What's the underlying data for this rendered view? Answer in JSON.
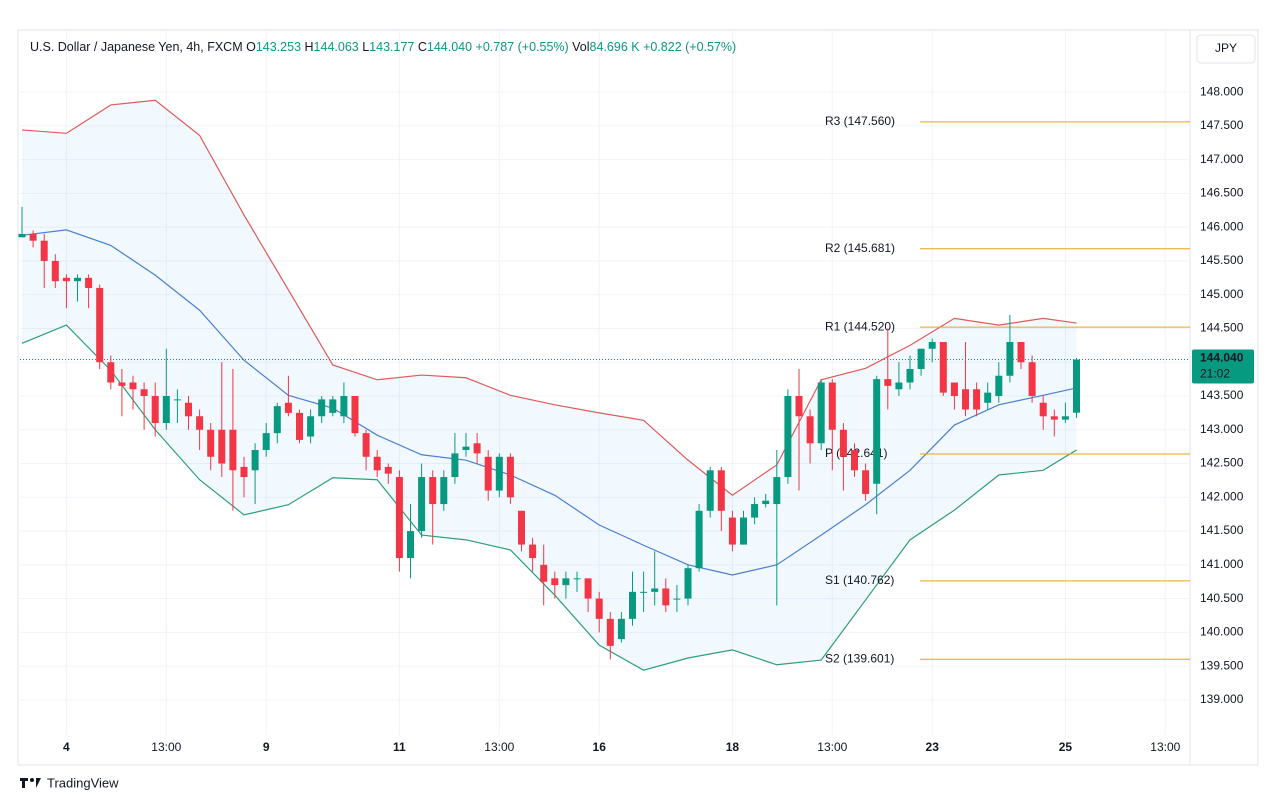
{
  "chart_data": {
    "type": "candlestick",
    "header": {
      "symbol": "U.S. Dollar / Japanese Yen, 4h, FXCM",
      "fields": [
        {
          "key": "O",
          "text": "143.253"
        },
        {
          "key": "H",
          "text": "144.063"
        },
        {
          "key": "L",
          "text": "143.177"
        },
        {
          "key": "C",
          "text": "144.040"
        }
      ],
      "change": "+0.787 (+0.55%)",
      "vol_key": "Vol",
      "vol": "84.696 K",
      "vol_change": "+0.822 (+0.57%)"
    },
    "currency": "JPY",
    "brand": "TradingView",
    "categories": [
      null,
      null,
      null,
      null,
      "4",
      null,
      null,
      null,
      null,
      null,
      null,
      null,
      null,
      "13:00",
      null,
      null,
      null,
      null,
      null,
      null,
      null,
      null,
      "9",
      null,
      null,
      null,
      null,
      null,
      null,
      null,
      null,
      null,
      null,
      null,
      "11",
      null,
      null,
      null,
      null,
      null,
      null,
      null,
      null,
      "13:00",
      null,
      null,
      null,
      null,
      null,
      null,
      null,
      null,
      "16",
      null,
      null,
      null,
      null,
      null,
      null,
      null,
      null,
      null,
      null,
      null,
      "18",
      null,
      null,
      null,
      null,
      null,
      null,
      null,
      null,
      "13:00",
      null,
      null,
      null,
      null,
      null,
      null,
      null,
      null,
      "23",
      null,
      null,
      null,
      null,
      null,
      null,
      null,
      null,
      null,
      null,
      null,
      "25",
      null,
      null,
      null,
      null,
      null,
      null,
      null,
      null,
      "13:00"
    ],
    "open": [
      145.85,
      145.9,
      145.8,
      145.5,
      145.25,
      145.2,
      145.25,
      145.1,
      144.0,
      143.7,
      143.7,
      143.6,
      143.5,
      143.1,
      143.45,
      143.4,
      143.2,
      143.0,
      143.0,
      143.0,
      142.45,
      142.4,
      142.7,
      142.95,
      143.4,
      143.25,
      142.9,
      143.2,
      143.25,
      143.2,
      143.5,
      142.95,
      142.6,
      142.45,
      142.3,
      141.1,
      141.5,
      142.3,
      141.9,
      142.3,
      142.7,
      142.8,
      142.6,
      142.1,
      142.6,
      141.8,
      141.3,
      141.0,
      140.8,
      140.7,
      140.8,
      140.8,
      140.5,
      140.2,
      139.9,
      140.2,
      140.6,
      140.6,
      140.65,
      140.5,
      140.5,
      140.95,
      141.8,
      142.4,
      141.7,
      141.3,
      141.7,
      141.9,
      141.9,
      142.3,
      143.5,
      143.2,
      142.8,
      143.7,
      143.0,
      142.7,
      142.4,
      142.2,
      143.75,
      143.6,
      143.7,
      143.9,
      144.2,
      144.3,
      143.7,
      143.6,
      143.6,
      143.4,
      143.5,
      143.8,
      144.3,
      144.0,
      143.4,
      143.2,
      143.15,
      143.253,
      null,
      null,
      null,
      null,
      null,
      null,
      null,
      null
    ],
    "high": [
      146.3,
      145.95,
      145.9,
      145.6,
      145.3,
      145.3,
      145.3,
      145.15,
      144.1,
      143.9,
      143.8,
      143.7,
      143.7,
      144.2,
      143.6,
      143.5,
      143.3,
      143.1,
      144.0,
      143.9,
      142.6,
      142.8,
      143.1,
      143.4,
      143.8,
      143.3,
      143.3,
      143.5,
      143.5,
      143.7,
      143.5,
      143.0,
      142.7,
      142.5,
      142.4,
      141.9,
      142.5,
      142.4,
      142.4,
      142.95,
      142.95,
      142.95,
      142.7,
      142.65,
      142.65,
      141.8,
      141.4,
      141.3,
      140.9,
      140.9,
      140.9,
      140.7,
      140.6,
      140.3,
      140.3,
      140.9,
      140.9,
      141.2,
      140.8,
      140.7,
      141.0,
      141.9,
      142.45,
      142.45,
      141.8,
      141.8,
      142.0,
      142.05,
      142.7,
      143.6,
      143.9,
      143.3,
      143.75,
      143.75,
      143.1,
      142.8,
      142.5,
      143.8,
      144.5,
      144.0,
      144.1,
      144.2,
      144.35,
      144.3,
      143.6,
      144.3,
      143.7,
      143.7,
      144.0,
      144.7,
      144.3,
      144.1,
      143.5,
      143.3,
      143.4,
      144.063,
      null,
      null,
      null,
      null,
      null,
      null,
      null,
      null
    ],
    "low": [
      145.85,
      145.7,
      145.1,
      145.1,
      144.8,
      144.9,
      144.8,
      143.9,
      143.6,
      143.2,
      143.3,
      143.0,
      142.9,
      143.0,
      143.1,
      143.0,
      142.7,
      142.4,
      142.3,
      141.8,
      142.0,
      141.9,
      142.6,
      142.8,
      143.2,
      142.8,
      142.8,
      143.1,
      143.2,
      143.1,
      142.9,
      142.4,
      142.3,
      142.2,
      140.9,
      140.8,
      141.4,
      141.3,
      141.8,
      142.2,
      142.6,
      142.5,
      141.95,
      142.0,
      141.9,
      141.2,
      140.9,
      140.4,
      140.5,
      140.5,
      140.6,
      140.3,
      140.0,
      139.6,
      139.85,
      140.1,
      140.3,
      140.4,
      140.3,
      140.3,
      140.4,
      140.9,
      141.7,
      141.5,
      141.2,
      141.3,
      141.6,
      141.85,
      140.4,
      142.2,
      142.1,
      142.5,
      142.7,
      142.4,
      142.1,
      142.3,
      141.95,
      141.75,
      143.3,
      143.5,
      143.6,
      143.8,
      144.0,
      143.5,
      143.3,
      143.2,
      143.2,
      143.3,
      143.4,
      143.7,
      143.9,
      143.4,
      143.0,
      142.9,
      143.1,
      143.177,
      null,
      null,
      null,
      null,
      null,
      null,
      null,
      null
    ],
    "close": [
      145.9,
      145.8,
      145.5,
      145.2,
      145.2,
      145.25,
      145.1,
      144.0,
      143.7,
      143.65,
      143.6,
      143.5,
      143.1,
      143.5,
      143.45,
      143.2,
      143.0,
      142.6,
      142.5,
      142.4,
      142.3,
      142.7,
      142.95,
      143.35,
      143.25,
      142.85,
      143.2,
      143.45,
      143.45,
      143.5,
      142.95,
      142.6,
      142.4,
      142.35,
      141.1,
      141.5,
      142.3,
      141.9,
      142.3,
      142.65,
      142.75,
      142.65,
      142.1,
      142.6,
      142.0,
      141.3,
      141.1,
      140.75,
      140.7,
      140.8,
      140.8,
      140.5,
      140.2,
      139.8,
      140.2,
      140.6,
      140.6,
      140.65,
      140.4,
      140.5,
      140.95,
      141.8,
      142.4,
      141.8,
      141.3,
      141.7,
      141.9,
      141.95,
      142.3,
      143.5,
      143.2,
      142.8,
      143.7,
      143.0,
      142.6,
      142.4,
      142.05,
      143.75,
      143.65,
      143.7,
      143.9,
      144.2,
      144.3,
      143.55,
      143.5,
      143.3,
      143.3,
      143.55,
      143.8,
      144.3,
      144.0,
      143.5,
      143.2,
      143.15,
      143.2,
      144.04,
      null,
      null,
      null,
      null,
      null,
      null,
      null,
      null
    ],
    "up_color": "#089981",
    "down_color": "#f23645",
    "bands": {
      "x": [
        0,
        4,
        8,
        12,
        16,
        20,
        24,
        28,
        32,
        36,
        40,
        44,
        48,
        52,
        56,
        60,
        64,
        68,
        72,
        76,
        80,
        84,
        88,
        92,
        95
      ],
      "upper": {
        "color": "#e05a5a",
        "values": [
          147.44,
          147.39,
          147.81,
          147.88,
          147.36,
          146.18,
          145.07,
          143.96,
          143.74,
          143.81,
          143.77,
          143.51,
          143.37,
          143.25,
          143.14,
          142.55,
          142.03,
          142.48,
          143.74,
          143.91,
          144.25,
          144.65,
          144.55,
          144.65,
          144.58
        ]
      },
      "middle": {
        "color": "#4a7fd0",
        "values": [
          145.88,
          145.96,
          145.73,
          145.29,
          144.77,
          144.03,
          143.51,
          143.32,
          142.92,
          142.63,
          142.55,
          142.33,
          142.03,
          141.59,
          141.29,
          141.0,
          140.85,
          141.0,
          141.44,
          141.89,
          142.4,
          143.07,
          143.37,
          143.51,
          143.62
        ]
      },
      "lower": {
        "color": "#2e9e7a",
        "values": [
          144.28,
          144.55,
          143.88,
          143.0,
          142.26,
          141.74,
          141.89,
          142.29,
          142.26,
          141.44,
          141.37,
          141.22,
          140.55,
          139.81,
          139.44,
          139.62,
          139.74,
          139.52,
          139.59,
          140.48,
          141.37,
          141.81,
          142.33,
          142.4,
          142.7
        ]
      }
    },
    "pivots": [
      {
        "label": "R3 (147.560)",
        "value": 147.56
      },
      {
        "label": "R2 (145.681)",
        "value": 145.681
      },
      {
        "label": "R1 (144.520)",
        "value": 144.52
      },
      {
        "label": "P (142.641)",
        "value": 142.641
      },
      {
        "label": "S1 (140.762)",
        "value": 140.762
      },
      {
        "label": "S2 (139.601)",
        "value": 139.601
      }
    ],
    "pivot_color": "#e8a317",
    "last_price": {
      "value": 144.04,
      "label": "144.040",
      "countdown": "21:02"
    },
    "ylim": [
      138.48,
      148.92
    ],
    "yticks": [
      {
        "value": 139,
        "label": "139.000"
      },
      {
        "value": 139.5,
        "label": "139.500"
      },
      {
        "value": 140,
        "label": "140.000"
      },
      {
        "value": 140.5,
        "label": "140.500"
      },
      {
        "value": 141,
        "label": "141.000"
      },
      {
        "value": 141.5,
        "label": "141.500"
      },
      {
        "value": 142,
        "label": "142.000"
      },
      {
        "value": 142.5,
        "label": "142.500"
      },
      {
        "value": 143,
        "label": "143.000"
      },
      {
        "value": 143.5,
        "label": "143.500"
      },
      {
        "value": 144,
        "label": "144.000"
      },
      {
        "value": 144.5,
        "label": "144.500"
      },
      {
        "value": 145,
        "label": "145.000"
      },
      {
        "value": 145.5,
        "label": "145.500"
      },
      {
        "value": 146,
        "label": "146.000"
      },
      {
        "value": 146.5,
        "label": "146.500"
      },
      {
        "value": 147,
        "label": "147.000"
      },
      {
        "value": 147.5,
        "label": "147.500"
      },
      {
        "value": 148,
        "label": "148.000"
      }
    ],
    "grid": true
  }
}
